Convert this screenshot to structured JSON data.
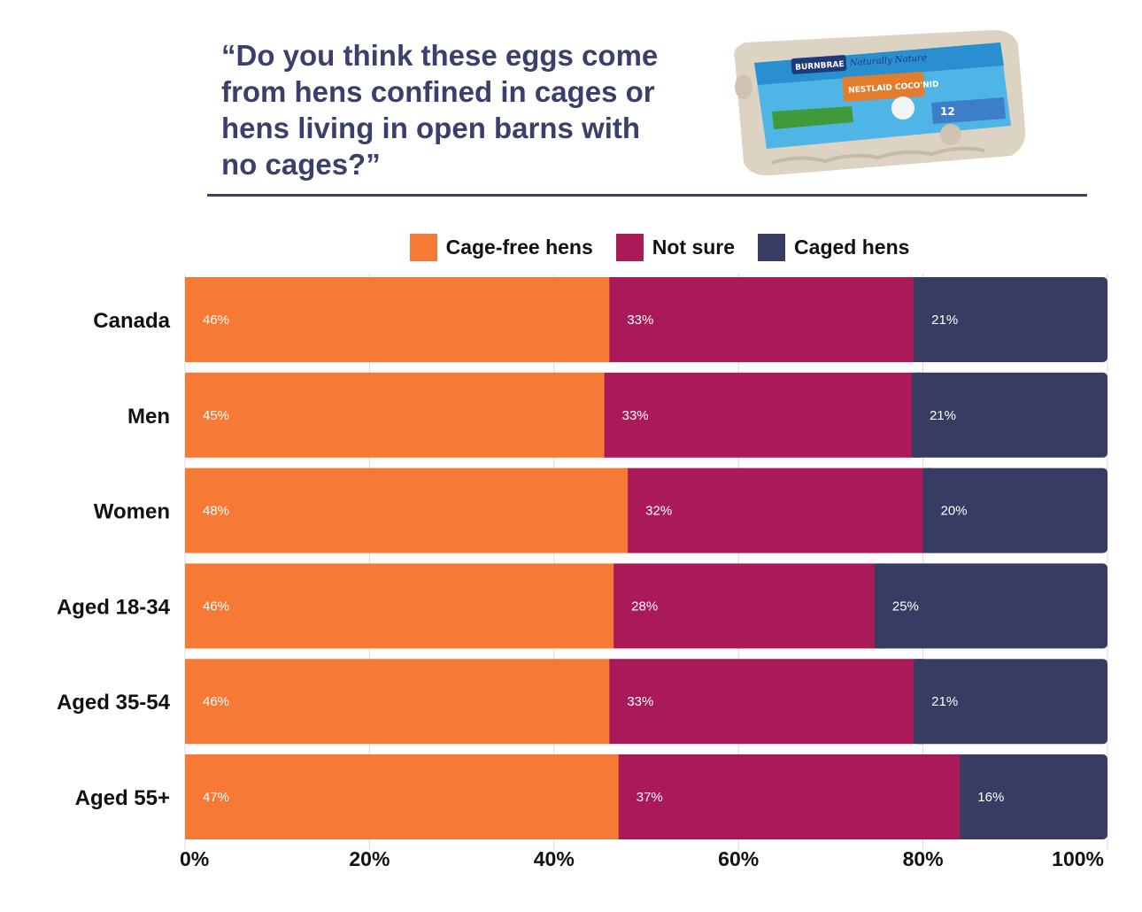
{
  "header": {
    "question": "“Do you think these eggs come from hens confined in cages or hens living in open barns with no cages?”"
  },
  "carton": {
    "brand": "BURNBRAE",
    "line": "Naturally Nature",
    "product": "NESTLAID COCO'NID",
    "count": "12"
  },
  "colors": {
    "cage_free": "#f67935",
    "not_sure": "#ab1a58",
    "caged": "#383c63",
    "title": "#3a3f6b"
  },
  "chart_data": {
    "type": "bar",
    "orientation": "horizontal",
    "stacked": true,
    "categories": [
      "Canada",
      "Men",
      "Women",
      "Aged 18-34",
      "Aged 35-54",
      "Aged 55+"
    ],
    "series": [
      {
        "name": "Cage-free hens",
        "values": [
          46,
          45,
          48,
          46,
          46,
          47
        ],
        "labels": [
          "46%",
          "45%",
          "48%",
          "46%",
          "46%",
          "47%"
        ]
      },
      {
        "name": "Not sure",
        "values": [
          33,
          33,
          32,
          28,
          33,
          37
        ],
        "labels": [
          "33%",
          "33%",
          "32%",
          "28%",
          "33%",
          "37%"
        ]
      },
      {
        "name": "Caged hens",
        "values": [
          21,
          21,
          20,
          25,
          21,
          16
        ],
        "labels": [
          "21%",
          "21%",
          "20%",
          "25%",
          "21%",
          "16%"
        ]
      }
    ],
    "xlim": [
      0,
      100
    ],
    "xticks": [
      0,
      20,
      40,
      60,
      80,
      100
    ],
    "xtick_labels": [
      "0%",
      "20%",
      "40%",
      "60%",
      "80%",
      "100%"
    ],
    "grid": true,
    "legend_position": "top"
  }
}
